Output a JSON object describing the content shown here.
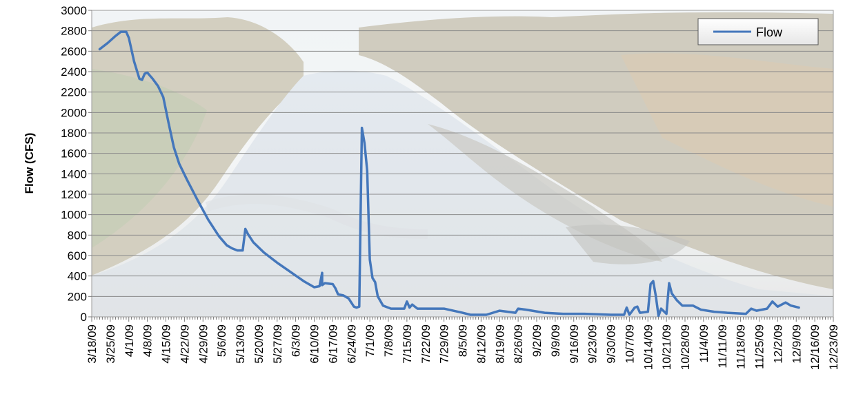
{
  "chart_data": {
    "type": "line",
    "title": "",
    "xlabel": "",
    "ylabel": "Flow (CFS)",
    "ylim": [
      0,
      3000
    ],
    "yticks": [
      0,
      200,
      400,
      600,
      800,
      1000,
      1200,
      1400,
      1600,
      1800,
      2000,
      2200,
      2400,
      2600,
      2800,
      3000
    ],
    "xlim": [
      "2009-03-18",
      "2009-12-23"
    ],
    "xtick_labels": [
      "3/18/09",
      "3/25/09",
      "4/1/09",
      "4/8/09",
      "4/15/09",
      "4/22/09",
      "4/29/09",
      "5/6/09",
      "5/13/09",
      "5/20/09",
      "5/27/09",
      "6/3/09",
      "6/10/09",
      "6/17/09",
      "6/24/09",
      "7/1/09",
      "7/8/09",
      "7/15/09",
      "7/22/09",
      "7/29/09",
      "8/5/09",
      "8/12/09",
      "8/19/09",
      "8/26/09",
      "9/2/09",
      "9/9/09",
      "9/16/09",
      "9/23/09",
      "9/30/09",
      "10/7/09",
      "10/14/09",
      "10/21/09",
      "10/28/09",
      "11/4/09",
      "11/11/09",
      "11/18/09",
      "11/25/09",
      "12/2/09",
      "12/9/09",
      "12/16/09",
      "12/23/09"
    ],
    "grid": true,
    "legend_position": "top-right",
    "background": "faded photograph of a river flowing between autumn trees under a cloudy sky",
    "series": [
      {
        "name": "Flow",
        "color": "#4477bb",
        "points": [
          [
            "2009-03-21",
            2620
          ],
          [
            "2009-03-24",
            2680
          ],
          [
            "2009-03-27",
            2750
          ],
          [
            "2009-03-29",
            2790
          ],
          [
            "2009-03-31",
            2790
          ],
          [
            "2009-04-01",
            2730
          ],
          [
            "2009-04-03",
            2500
          ],
          [
            "2009-04-05",
            2330
          ],
          [
            "2009-04-06",
            2320
          ],
          [
            "2009-04-07",
            2380
          ],
          [
            "2009-04-08",
            2390
          ],
          [
            "2009-04-10",
            2330
          ],
          [
            "2009-04-12",
            2260
          ],
          [
            "2009-04-14",
            2150
          ],
          [
            "2009-04-16",
            1900
          ],
          [
            "2009-04-18",
            1660
          ],
          [
            "2009-04-20",
            1500
          ],
          [
            "2009-04-23",
            1340
          ],
          [
            "2009-04-27",
            1140
          ],
          [
            "2009-05-01",
            950
          ],
          [
            "2009-05-05",
            790
          ],
          [
            "2009-05-08",
            700
          ],
          [
            "2009-05-10",
            670
          ],
          [
            "2009-05-12",
            650
          ],
          [
            "2009-05-14",
            650
          ],
          [
            "2009-05-15",
            860
          ],
          [
            "2009-05-16",
            810
          ],
          [
            "2009-05-18",
            730
          ],
          [
            "2009-05-22",
            630
          ],
          [
            "2009-05-27",
            530
          ],
          [
            "2009-06-01",
            440
          ],
          [
            "2009-06-06",
            350
          ],
          [
            "2009-06-10",
            290
          ],
          [
            "2009-06-12",
            300
          ],
          [
            "2009-06-13",
            430
          ],
          [
            "2009-06-13",
            310
          ],
          [
            "2009-06-14",
            330
          ],
          [
            "2009-06-17",
            320
          ],
          [
            "2009-06-18",
            280
          ],
          [
            "2009-06-19",
            220
          ],
          [
            "2009-06-21",
            210
          ],
          [
            "2009-06-23",
            180
          ],
          [
            "2009-06-25",
            100
          ],
          [
            "2009-06-26",
            90
          ],
          [
            "2009-06-27",
            100
          ],
          [
            "2009-06-28",
            1850
          ],
          [
            "2009-06-29",
            1700
          ],
          [
            "2009-06-30",
            1430
          ],
          [
            "2009-07-01",
            560
          ],
          [
            "2009-07-02",
            380
          ],
          [
            "2009-07-03",
            340
          ],
          [
            "2009-07-04",
            200
          ],
          [
            "2009-07-06",
            110
          ],
          [
            "2009-07-09",
            80
          ],
          [
            "2009-07-14",
            80
          ],
          [
            "2009-07-15",
            150
          ],
          [
            "2009-07-16",
            90
          ],
          [
            "2009-07-17",
            120
          ],
          [
            "2009-07-19",
            80
          ],
          [
            "2009-07-29",
            80
          ],
          [
            "2009-08-05",
            40
          ],
          [
            "2009-08-08",
            20
          ],
          [
            "2009-08-14",
            20
          ],
          [
            "2009-08-19",
            60
          ],
          [
            "2009-08-25",
            40
          ],
          [
            "2009-08-26",
            80
          ],
          [
            "2009-08-29",
            70
          ],
          [
            "2009-09-05",
            40
          ],
          [
            "2009-09-12",
            30
          ],
          [
            "2009-09-20",
            30
          ],
          [
            "2009-09-30",
            20
          ],
          [
            "2009-10-05",
            20
          ],
          [
            "2009-10-06",
            90
          ],
          [
            "2009-10-07",
            20
          ],
          [
            "2009-10-09",
            90
          ],
          [
            "2009-10-10",
            100
          ],
          [
            "2009-10-11",
            40
          ],
          [
            "2009-10-14",
            50
          ],
          [
            "2009-10-15",
            320
          ],
          [
            "2009-10-16",
            350
          ],
          [
            "2009-10-17",
            200
          ],
          [
            "2009-10-18",
            10
          ],
          [
            "2009-10-19",
            80
          ],
          [
            "2009-10-21",
            30
          ],
          [
            "2009-10-22",
            330
          ],
          [
            "2009-10-23",
            230
          ],
          [
            "2009-10-25",
            160
          ],
          [
            "2009-10-27",
            110
          ],
          [
            "2009-10-31",
            110
          ],
          [
            "2009-11-03",
            70
          ],
          [
            "2009-11-08",
            50
          ],
          [
            "2009-11-13",
            40
          ],
          [
            "2009-11-20",
            30
          ],
          [
            "2009-11-22",
            80
          ],
          [
            "2009-11-24",
            60
          ],
          [
            "2009-11-28",
            80
          ],
          [
            "2009-11-30",
            150
          ],
          [
            "2009-12-02",
            100
          ],
          [
            "2009-12-05",
            140
          ],
          [
            "2009-12-07",
            110
          ],
          [
            "2009-12-10",
            90
          ]
        ]
      }
    ]
  }
}
